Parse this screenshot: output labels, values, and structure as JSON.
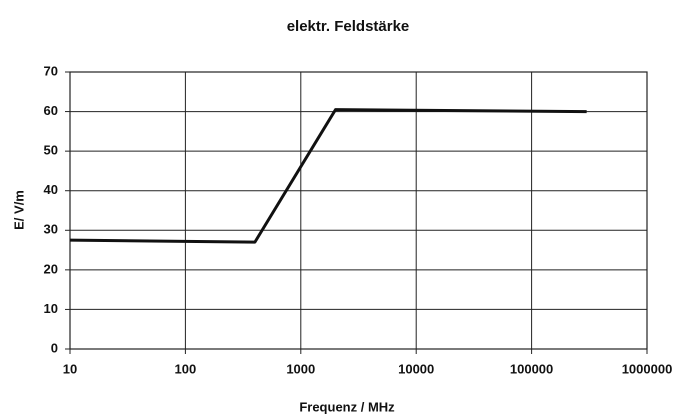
{
  "chart_data": {
    "type": "line",
    "title": "elektr. Feldstärke",
    "xlabel": "Frequenz / MHz",
    "ylabel": "E/ V/m",
    "x": [
      10,
      400,
      2000,
      300000
    ],
    "series": [
      {
        "color": "#111111",
        "values": [
          27.5,
          27,
          60.5,
          60
        ]
      }
    ],
    "xscale": "log",
    "xlim": [
      10,
      1000000
    ],
    "xticks": [
      10,
      100,
      1000,
      10000,
      100000,
      1000000
    ],
    "ylim": [
      0,
      70
    ],
    "yticks": [
      0,
      10,
      20,
      30,
      40,
      50,
      60,
      70
    ],
    "grid": true
  }
}
